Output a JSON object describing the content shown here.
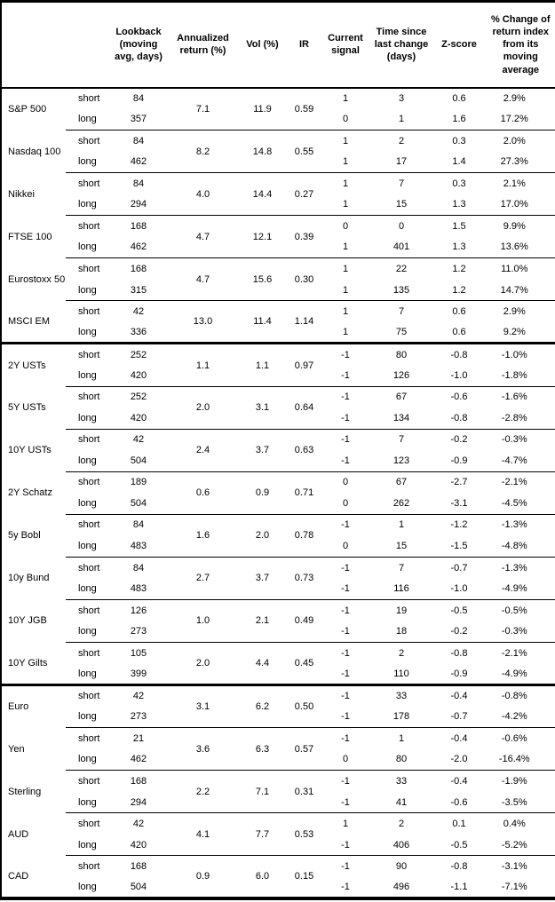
{
  "table": {
    "headers": {
      "asset": "",
      "side": "",
      "lookback": "Lookback (moving avg, days)",
      "annualized_return": "Annualized return (%)",
      "vol": "Vol (%)",
      "ir": "IR",
      "current_signal": "Current signal",
      "time_since": "Time since last change (days)",
      "z_score": "Z-score",
      "pct_change": "% Change of return index from its moving average"
    },
    "sections": [
      {
        "groups": [
          {
            "asset": "S&P 500",
            "annualized_return": "7.1",
            "vol": "11.9",
            "ir": "0.59",
            "rows": [
              {
                "side": "short",
                "lookback": "84",
                "signal": "1",
                "time_since": "3",
                "z_score": "0.6",
                "pct_change": "2.9%"
              },
              {
                "side": "long",
                "lookback": "357",
                "signal": "0",
                "time_since": "1",
                "z_score": "1.6",
                "pct_change": "17.2%"
              }
            ]
          },
          {
            "asset": "Nasdaq 100",
            "annualized_return": "8.2",
            "vol": "14.8",
            "ir": "0.55",
            "rows": [
              {
                "side": "short",
                "lookback": "84",
                "signal": "1",
                "time_since": "2",
                "z_score": "0.3",
                "pct_change": "2.0%"
              },
              {
                "side": "long",
                "lookback": "462",
                "signal": "1",
                "time_since": "17",
                "z_score": "1.4",
                "pct_change": "27.3%"
              }
            ]
          },
          {
            "asset": "Nikkei",
            "annualized_return": "4.0",
            "vol": "14.4",
            "ir": "0.27",
            "rows": [
              {
                "side": "short",
                "lookback": "84",
                "signal": "1",
                "time_since": "7",
                "z_score": "0.3",
                "pct_change": "2.1%"
              },
              {
                "side": "long",
                "lookback": "294",
                "signal": "1",
                "time_since": "15",
                "z_score": "1.3",
                "pct_change": "17.0%"
              }
            ]
          },
          {
            "asset": "FTSE 100",
            "annualized_return": "4.7",
            "vol": "12.1",
            "ir": "0.39",
            "rows": [
              {
                "side": "short",
                "lookback": "168",
                "signal": "0",
                "time_since": "0",
                "z_score": "1.5",
                "pct_change": "9.9%"
              },
              {
                "side": "long",
                "lookback": "462",
                "signal": "1",
                "time_since": "401",
                "z_score": "1.3",
                "pct_change": "13.6%"
              }
            ]
          },
          {
            "asset": "Eurostoxx 50",
            "annualized_return": "4.7",
            "vol": "15.6",
            "ir": "0.30",
            "rows": [
              {
                "side": "short",
                "lookback": "168",
                "signal": "1",
                "time_since": "22",
                "z_score": "1.2",
                "pct_change": "11.0%"
              },
              {
                "side": "long",
                "lookback": "315",
                "signal": "1",
                "time_since": "135",
                "z_score": "1.2",
                "pct_change": "14.7%"
              }
            ]
          },
          {
            "asset": "MSCI EM",
            "annualized_return": "13.0",
            "vol": "11.4",
            "ir": "1.14",
            "rows": [
              {
                "side": "short",
                "lookback": "42",
                "signal": "1",
                "time_since": "7",
                "z_score": "0.6",
                "pct_change": "2.9%"
              },
              {
                "side": "long",
                "lookback": "336",
                "signal": "1",
                "time_since": "75",
                "z_score": "0.6",
                "pct_change": "9.2%"
              }
            ]
          }
        ]
      },
      {
        "groups": [
          {
            "asset": "2Y USTs",
            "annualized_return": "1.1",
            "vol": "1.1",
            "ir": "0.97",
            "rows": [
              {
                "side": "short",
                "lookback": "252",
                "signal": "-1",
                "time_since": "80",
                "z_score": "-0.8",
                "pct_change": "-1.0%"
              },
              {
                "side": "long",
                "lookback": "420",
                "signal": "-1",
                "time_since": "126",
                "z_score": "-1.0",
                "pct_change": "-1.8%"
              }
            ]
          },
          {
            "asset": "5Y USTs",
            "annualized_return": "2.0",
            "vol": "3.1",
            "ir": "0.64",
            "rows": [
              {
                "side": "short",
                "lookback": "252",
                "signal": "-1",
                "time_since": "67",
                "z_score": "-0.6",
                "pct_change": "-1.6%"
              },
              {
                "side": "long",
                "lookback": "420",
                "signal": "-1",
                "time_since": "134",
                "z_score": "-0.8",
                "pct_change": "-2.8%"
              }
            ]
          },
          {
            "asset": "10Y USTs",
            "annualized_return": "2.4",
            "vol": "3.7",
            "ir": "0.63",
            "rows": [
              {
                "side": "short",
                "lookback": "42",
                "signal": "-1",
                "time_since": "7",
                "z_score": "-0.2",
                "pct_change": "-0.3%"
              },
              {
                "side": "long",
                "lookback": "504",
                "signal": "-1",
                "time_since": "123",
                "z_score": "-0.9",
                "pct_change": "-4.7%"
              }
            ]
          },
          {
            "asset": "2Y Schatz",
            "annualized_return": "0.6",
            "vol": "0.9",
            "ir": "0.71",
            "rows": [
              {
                "side": "short",
                "lookback": "189",
                "signal": "0",
                "time_since": "67",
                "z_score": "-2.7",
                "pct_change": "-2.1%"
              },
              {
                "side": "long",
                "lookback": "504",
                "signal": "0",
                "time_since": "262",
                "z_score": "-3.1",
                "pct_change": "-4.5%"
              }
            ]
          },
          {
            "asset": "5y Bobl",
            "annualized_return": "1.6",
            "vol": "2.0",
            "ir": "0.78",
            "rows": [
              {
                "side": "short",
                "lookback": "84",
                "signal": "-1",
                "time_since": "1",
                "z_score": "-1.2",
                "pct_change": "-1.3%"
              },
              {
                "side": "long",
                "lookback": "483",
                "signal": "0",
                "time_since": "15",
                "z_score": "-1.5",
                "pct_change": "-4.8%"
              }
            ]
          },
          {
            "asset": "10y Bund",
            "annualized_return": "2.7",
            "vol": "3.7",
            "ir": "0.73",
            "rows": [
              {
                "side": "short",
                "lookback": "84",
                "signal": "-1",
                "time_since": "7",
                "z_score": "-0.7",
                "pct_change": "-1.3%"
              },
              {
                "side": "long",
                "lookback": "483",
                "signal": "-1",
                "time_since": "116",
                "z_score": "-1.0",
                "pct_change": "-4.9%"
              }
            ]
          },
          {
            "asset": "10Y JGB",
            "annualized_return": "1.0",
            "vol": "2.1",
            "ir": "0.49",
            "rows": [
              {
                "side": "short",
                "lookback": "126",
                "signal": "-1",
                "time_since": "19",
                "z_score": "-0.5",
                "pct_change": "-0.5%"
              },
              {
                "side": "long",
                "lookback": "273",
                "signal": "-1",
                "time_since": "18",
                "z_score": "-0.2",
                "pct_change": "-0.3%"
              }
            ]
          },
          {
            "asset": "10Y Gilts",
            "annualized_return": "2.0",
            "vol": "4.4",
            "ir": "0.45",
            "rows": [
              {
                "side": "short",
                "lookback": "105",
                "signal": "-1",
                "time_since": "2",
                "z_score": "-0.8",
                "pct_change": "-2.1%"
              },
              {
                "side": "long",
                "lookback": "399",
                "signal": "-1",
                "time_since": "110",
                "z_score": "-0.9",
                "pct_change": "-4.9%"
              }
            ]
          }
        ]
      },
      {
        "groups": [
          {
            "asset": "Euro",
            "annualized_return": "3.1",
            "vol": "6.2",
            "ir": "0.50",
            "rows": [
              {
                "side": "short",
                "lookback": "42",
                "signal": "-1",
                "time_since": "33",
                "z_score": "-0.4",
                "pct_change": "-0.8%"
              },
              {
                "side": "long",
                "lookback": "273",
                "signal": "-1",
                "time_since": "178",
                "z_score": "-0.7",
                "pct_change": "-4.2%"
              }
            ]
          },
          {
            "asset": "Yen",
            "annualized_return": "3.6",
            "vol": "6.3",
            "ir": "0.57",
            "rows": [
              {
                "side": "short",
                "lookback": "21",
                "signal": "-1",
                "time_since": "1",
                "z_score": "-0.4",
                "pct_change": "-0.6%"
              },
              {
                "side": "long",
                "lookback": "462",
                "signal": "0",
                "time_since": "80",
                "z_score": "-2.0",
                "pct_change": "-16.4%"
              }
            ]
          },
          {
            "asset": "Sterling",
            "annualized_return": "2.2",
            "vol": "7.1",
            "ir": "0.31",
            "rows": [
              {
                "side": "short",
                "lookback": "168",
                "signal": "-1",
                "time_since": "33",
                "z_score": "-0.4",
                "pct_change": "-1.9%"
              },
              {
                "side": "long",
                "lookback": "294",
                "signal": "-1",
                "time_since": "41",
                "z_score": "-0.6",
                "pct_change": "-3.5%"
              }
            ]
          },
          {
            "asset": "AUD",
            "annualized_return": "4.1",
            "vol": "7.7",
            "ir": "0.53",
            "rows": [
              {
                "side": "short",
                "lookback": "42",
                "signal": "1",
                "time_since": "2",
                "z_score": "0.1",
                "pct_change": "0.4%"
              },
              {
                "side": "long",
                "lookback": "420",
                "signal": "-1",
                "time_since": "406",
                "z_score": "-0.5",
                "pct_change": "-5.2%"
              }
            ]
          },
          {
            "asset": "CAD",
            "annualized_return": "0.9",
            "vol": "6.0",
            "ir": "0.15",
            "rows": [
              {
                "side": "short",
                "lookback": "168",
                "signal": "-1",
                "time_since": "90",
                "z_score": "-0.8",
                "pct_change": "-3.1%"
              },
              {
                "side": "long",
                "lookback": "504",
                "signal": "-1",
                "time_since": "496",
                "z_score": "-1.1",
                "pct_change": "-7.1%"
              }
            ]
          }
        ]
      }
    ]
  }
}
